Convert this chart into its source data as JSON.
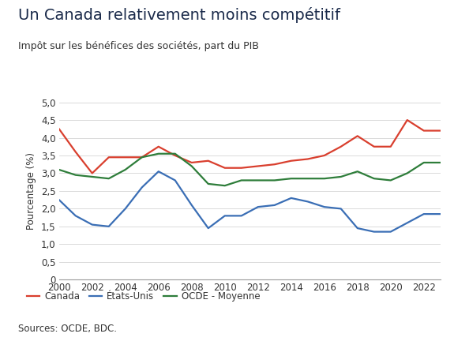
{
  "title": "Un Canada relativement moins compétitif",
  "subtitle": "Impôt sur les bénéfices des sociétés, part du PIB",
  "source": "Sources: OCDE, BDC.",
  "ylabel": "Pourcentage (%)",
  "years": [
    2000,
    2001,
    2002,
    2003,
    2004,
    2005,
    2006,
    2007,
    2008,
    2009,
    2010,
    2011,
    2012,
    2013,
    2014,
    2015,
    2016,
    2017,
    2018,
    2019,
    2020,
    2021,
    2022,
    2023
  ],
  "canada": [
    4.25,
    3.6,
    3.0,
    3.45,
    3.45,
    3.45,
    3.75,
    3.5,
    3.3,
    3.35,
    3.15,
    3.15,
    3.2,
    3.25,
    3.35,
    3.4,
    3.5,
    3.75,
    4.05,
    3.75,
    3.75,
    4.5,
    4.2,
    4.2
  ],
  "etats_unis": [
    2.25,
    1.8,
    1.55,
    1.5,
    2.0,
    2.6,
    3.05,
    2.8,
    2.1,
    1.45,
    1.8,
    1.8,
    2.05,
    2.1,
    2.3,
    2.2,
    2.05,
    2.0,
    1.45,
    1.35,
    1.35,
    1.6,
    1.85,
    1.85
  ],
  "ocde_moyenne": [
    3.1,
    2.95,
    2.9,
    2.85,
    3.1,
    3.45,
    3.55,
    3.55,
    3.2,
    2.7,
    2.65,
    2.8,
    2.8,
    2.8,
    2.85,
    2.85,
    2.85,
    2.9,
    3.05,
    2.85,
    2.8,
    3.0,
    3.3,
    3.3
  ],
  "canada_color": "#d93f2e",
  "etats_unis_color": "#3a6eb5",
  "ocde_color": "#2e7d3a",
  "title_color": "#1a2a4a",
  "subtitle_color": "#333333",
  "source_color": "#333333",
  "tick_color": "#333333",
  "ylabel_color": "#333333",
  "ylim": [
    0,
    5.0
  ],
  "yticks": [
    0,
    0.5,
    1.0,
    1.5,
    2.0,
    2.5,
    3.0,
    3.5,
    4.0,
    4.5,
    5.0
  ],
  "ytick_labels": [
    "0",
    "0,5",
    "1,0",
    "1,5",
    "2,0",
    "2,5",
    "3,0",
    "3,5",
    "4,0",
    "4,5",
    "5,0"
  ],
  "xticks": [
    2000,
    2002,
    2004,
    2006,
    2008,
    2010,
    2012,
    2014,
    2016,
    2018,
    2020,
    2022
  ],
  "legend_labels": [
    "Canada",
    "États-Unis",
    "OCDE - Moyenne"
  ],
  "background_color": "#ffffff",
  "line_width": 1.6,
  "title_fontsize": 14,
  "subtitle_fontsize": 9,
  "axis_fontsize": 8.5,
  "legend_fontsize": 8.5,
  "source_fontsize": 8.5
}
